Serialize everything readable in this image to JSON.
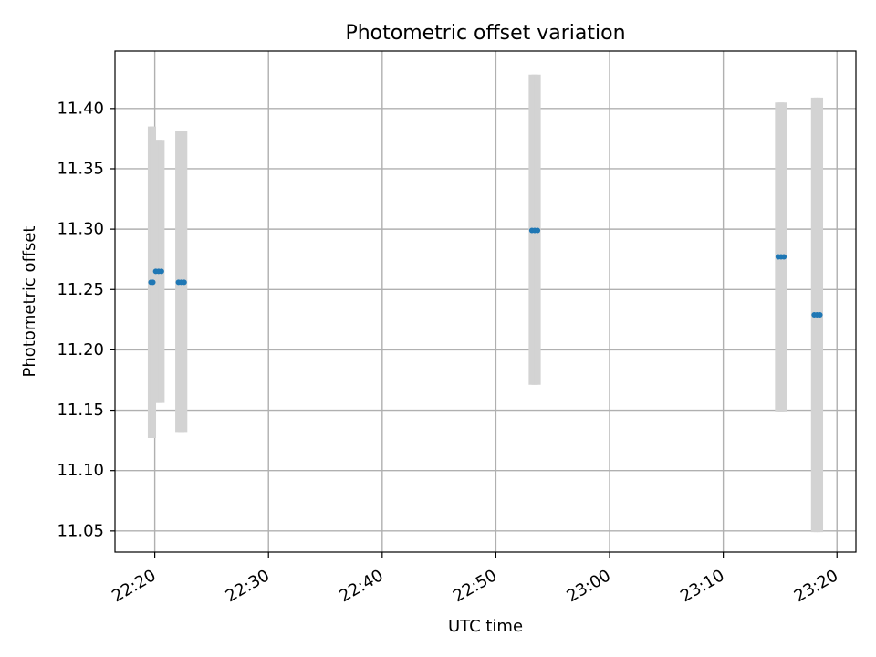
{
  "chart_data": {
    "type": "scatter",
    "title": "Photometric offset variation",
    "xlabel": "UTC time",
    "ylabel": "Photometric offset",
    "x_axis_type": "time",
    "xlim": [
      "22:16:30",
      "23:21:40"
    ],
    "ylim": [
      11.0325,
      11.4475
    ],
    "x_ticks": [
      "22:20",
      "22:30",
      "22:40",
      "22:50",
      "23:00",
      "23:10",
      "23:20"
    ],
    "y_ticks": [
      "11.05",
      "11.10",
      "11.15",
      "11.20",
      "11.25",
      "11.30",
      "11.35",
      "11.40"
    ],
    "grid": true,
    "colors": {
      "marker": "#1f77b4",
      "error_bar": "#d3d3d3",
      "grid": "#b0b0b0"
    },
    "series": [
      {
        "points": [
          {
            "times": [
              "22:19:40",
              "22:19:50"
            ],
            "offset": 11.256,
            "err_low": 11.127,
            "err_high": 11.385
          },
          {
            "times": [
              "22:20:05",
              "22:20:20",
              "22:20:35"
            ],
            "offset": 11.265,
            "err_low": 11.156,
            "err_high": 11.374
          },
          {
            "times": [
              "22:22:05",
              "22:22:20",
              "22:22:35"
            ],
            "offset": 11.256,
            "err_low": 11.132,
            "err_high": 11.381
          },
          {
            "times": [
              "22:53:10",
              "22:53:25",
              "22:53:40"
            ],
            "offset": 11.299,
            "err_low": 11.171,
            "err_high": 11.428
          },
          {
            "times": [
              "23:14:50",
              "23:15:05",
              "23:15:20"
            ],
            "offset": 11.277,
            "err_low": 11.149,
            "err_high": 11.405
          },
          {
            "times": [
              "23:18:00",
              "23:18:15",
              "23:18:30"
            ],
            "offset": 11.229,
            "err_low": 11.049,
            "err_high": 11.409
          }
        ]
      }
    ]
  }
}
